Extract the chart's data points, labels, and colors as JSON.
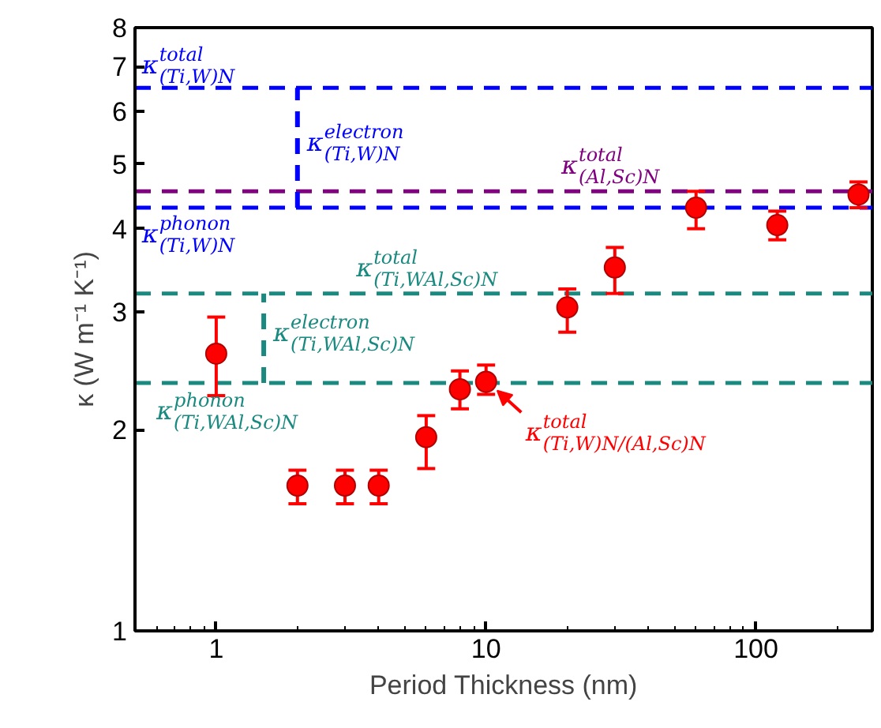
{
  "chart_data": {
    "type": "scatter",
    "xlabel": "Period Thickness (nm)",
    "ylabel": "κ (W m⁻¹ K⁻¹)",
    "log": "xy",
    "xlim": [
      0.5,
      270
    ],
    "xticks": [
      1,
      10,
      100
    ],
    "ylim": [
      1,
      8
    ],
    "yticks": [
      1,
      2,
      3,
      4,
      5,
      6,
      7,
      8
    ],
    "grid": false,
    "marker": "circle",
    "series": [
      {
        "name": "κ$^{total}$$_{(Ti,W)N/(Al,Sc)N}$",
        "color": "#ff0000",
        "x": [
          1,
          2,
          3,
          4,
          6,
          8,
          10,
          20,
          30,
          60,
          120,
          240
        ],
        "values": [
          2.6,
          1.65,
          1.65,
          1.65,
          1.95,
          2.3,
          2.36,
          3.05,
          3.5,
          4.3,
          4.05,
          4.5
        ],
        "errors": [
          [
            2.25,
            2.95
          ],
          [
            1.55,
            1.74
          ],
          [
            1.55,
            1.74
          ],
          [
            1.55,
            1.74
          ],
          [
            1.75,
            2.1
          ],
          [
            2.15,
            2.45
          ],
          [
            2.26,
            2.5
          ],
          [
            2.8,
            3.25
          ],
          [
            3.2,
            3.75
          ],
          [
            4.0,
            4.55
          ],
          [
            3.85,
            4.25
          ],
          [
            4.3,
            4.7
          ]
        ]
      },
      {
        "type": "line",
        "name": "κ$^{electron}$$_{(Ti,W)N}$",
        "color": "#0000ff",
        "line_style": "dashed",
        "marker": "none",
        "x": [
          2,
          2
        ],
        "values": [
          4.3,
          6.5
        ]
      },
      {
        "type": "line",
        "name": "κ$^{electron}$$_{(Ti,WAl,Sc)N}$",
        "color": "#1a8a80",
        "line_style": "dashed",
        "marker": "none",
        "x": [
          1.5,
          1.5
        ],
        "values": [
          2.35,
          3.2
        ]
      }
    ],
    "ref_lines": [
      {
        "axis": "y",
        "value": 6.5,
        "label": "κ$^{total}$$_{(Ti,W)N}$",
        "color": "#0000ff",
        "line_style": "dashed"
      },
      {
        "axis": "y",
        "value": 4.3,
        "label": "κ$^{phonon}$$_{(Ti,W)N}$",
        "color": "#0000ff",
        "line_style": "dashed"
      },
      {
        "axis": "y",
        "value": 4.55,
        "label": "κ$^{total}$$_{(Al,Sc)N}$",
        "color": "#800080",
        "line_style": "dashed"
      },
      {
        "axis": "y",
        "value": 3.2,
        "label": "κ$^{total}$$_{(Ti,WAl,Sc)N}$",
        "color": "#1a8a80",
        "line_style": "dashed"
      },
      {
        "axis": "y",
        "value": 2.35,
        "label": "κ$^{phonon}$$_{(Ti,WAl,Sc)N}$",
        "color": "#1a8a80",
        "line_style": "dashed"
      }
    ]
  }
}
